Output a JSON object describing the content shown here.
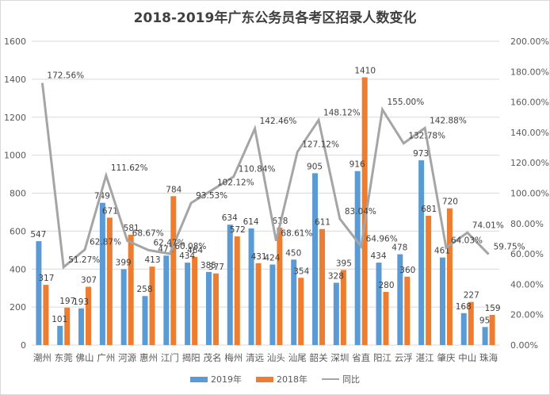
{
  "chart_data": {
    "type": "bar",
    "title": "2018-2019年广东公务员各考区招录人数变化",
    "categories": [
      "潮州",
      "东莞",
      "佛山",
      "广州",
      "河源",
      "惠州",
      "江门",
      "揭阳",
      "茂名",
      "梅州",
      "清远",
      "汕头",
      "汕尾",
      "韶关",
      "深圳",
      "省直",
      "阳江",
      "云浮",
      "湛江",
      "肇庆",
      "中山",
      "珠海"
    ],
    "series": [
      {
        "name": "2019年",
        "type": "bar",
        "color": "#5b9bd5",
        "values": [
          547,
          101,
          193,
          749,
          399,
          258,
          471,
          434,
          385,
          634,
          614,
          424,
          450,
          905,
          328,
          916,
          434,
          478,
          973,
          461,
          168,
          95
        ]
      },
      {
        "name": "2018年",
        "type": "bar",
        "color": "#ed7d31",
        "values": [
          317,
          197,
          307,
          671,
          581,
          413,
          784,
          464,
          377,
          572,
          431,
          618,
          354,
          611,
          395,
          1410,
          280,
          360,
          681,
          720,
          227,
          159
        ]
      },
      {
        "name": "同比",
        "type": "line",
        "axis": "right",
        "color": "#a5a5a5",
        "values": [
          172.56,
          51.27,
          62.87,
          111.62,
          68.67,
          62.47,
          60.08,
          93.53,
          102.12,
          110.84,
          142.46,
          68.61,
          127.12,
          148.12,
          83.04,
          64.96,
          155.0,
          132.78,
          142.88,
          64.03,
          74.01,
          59.75
        ],
        "labels": [
          "172.56%",
          "51.27%",
          "62.87%",
          "111.62%",
          "68.67%",
          "62.47%",
          "60.08%",
          "93.53%",
          "102.12%",
          "110.84%",
          "142.46%",
          "68.61%",
          "127.12%",
          "148.12%",
          "83.04%",
          "64.96%",
          "155.00%",
          "132.78%",
          "142.88%",
          "64.03%",
          "74.01%",
          "59.75%"
        ]
      }
    ],
    "ylim": [
      0,
      1600
    ],
    "yticks": [
      "0",
      "200",
      "400",
      "600",
      "800",
      "1000",
      "1200",
      "1400",
      "1600"
    ],
    "y2lim": [
      0,
      200
    ],
    "y2ticks": [
      "0.00%",
      "20.00%",
      "40.00%",
      "60.00%",
      "80.00%",
      "100.00%",
      "120.00%",
      "140.00%",
      "160.00%",
      "180.00%",
      "200.00%"
    ],
    "grid": true,
    "legend_position": "bottom"
  },
  "legend": {
    "items": [
      "2019年",
      "2018年",
      "同比"
    ]
  }
}
